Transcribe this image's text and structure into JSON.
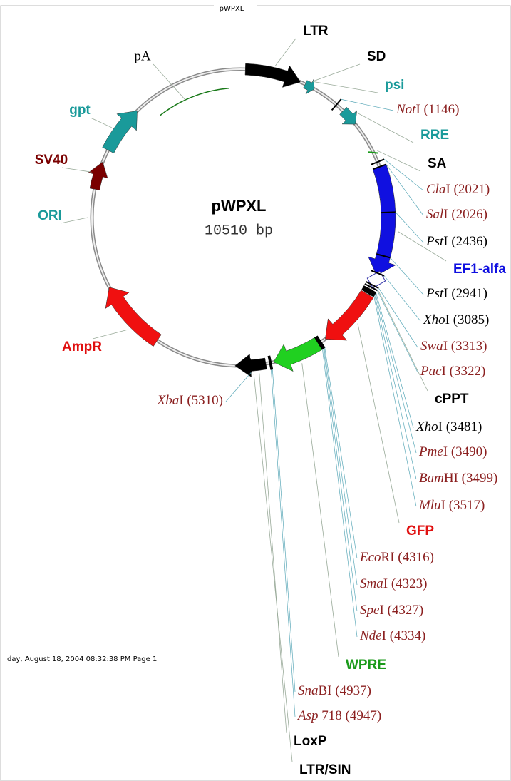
{
  "header": {
    "title": "pWPXL"
  },
  "center": {
    "name": "pWPXL",
    "size": "10510 bp"
  },
  "features": [
    "LTR",
    "SD",
    "psi",
    "RRE",
    "SA",
    "EF1-alfa",
    "cPPT",
    "GFP",
    "WPRE",
    "LoxP",
    "LTR/SIN",
    "pA",
    "gpt",
    "SV40",
    "ORI",
    "AmpR"
  ],
  "sites": [
    {
      "italic": "Not",
      "rest": "I",
      "position": "(1146)"
    },
    {
      "italic": "Cla",
      "rest": "I",
      "position": "(2021)"
    },
    {
      "italic": "Sal",
      "rest": "I",
      "position": "(2026)"
    },
    {
      "italic": "Pst",
      "rest": "I",
      "position": "(2436)"
    },
    {
      "italic": "Pst",
      "rest": "I",
      "position": "(2941)"
    },
    {
      "italic": "Xho",
      "rest": "I",
      "position": "(3085)"
    },
    {
      "italic": "Swa",
      "rest": "I",
      "position": "(3313)"
    },
    {
      "italic": "Pac",
      "rest": "I",
      "position": "(3322)"
    },
    {
      "italic": "Xho",
      "rest": "I",
      "position": "(3481)"
    },
    {
      "italic": "Pme",
      "rest": "I",
      "position": "(3490)"
    },
    {
      "italic": "Bam",
      "rest": "HI",
      "position": "(3499)"
    },
    {
      "italic": "Mlu",
      "rest": "I",
      "position": "(3517)"
    },
    {
      "italic": "Eco",
      "rest": "RI",
      "position": "(4316)"
    },
    {
      "italic": "Sma",
      "rest": "I",
      "position": "(4323)"
    },
    {
      "italic": "Spe",
      "rest": "I",
      "position": "(4327)"
    },
    {
      "italic": "Nde",
      "rest": "I",
      "position": "(4334)"
    },
    {
      "italic": "Sna",
      "rest": "BI",
      "position": "(4937)"
    },
    {
      "italic": "Asp",
      "rest": " 718",
      "position": "(4947)"
    },
    {
      "italic": "Xba",
      "rest": "I",
      "position": "(5310)"
    }
  ],
  "footer": "day, August 18, 2004 08:32:38 PM Page 1"
}
